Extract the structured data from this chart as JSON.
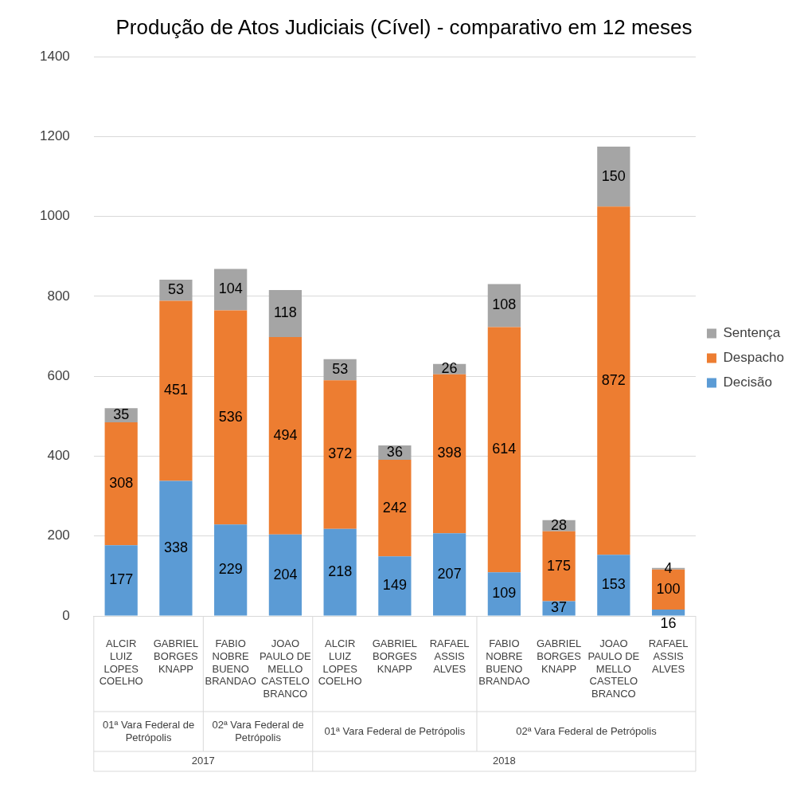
{
  "chart_data": {
    "type": "bar",
    "title": "Produção de Atos Judiciais (Cível) - comparativo em 12 meses",
    "categories": [
      "ALCIR LUIZ LOPES COELHO",
      "GABRIEL BORGES KNAPP",
      "FABIO NOBRE BUENO BRANDAO",
      "JOAO PAULO DE MELLO CASTELO BRANCO",
      "ALCIR LUIZ LOPES COELHO",
      "GABRIEL BORGES KNAPP",
      "RAFAEL ASSIS ALVES",
      "FABIO NOBRE BUENO BRANDAO",
      "GABRIEL BORGES KNAPP",
      "JOAO PAULO DE MELLO CASTELO BRANCO",
      "RAFAEL ASSIS ALVES"
    ],
    "series": [
      {
        "name": "Decisão",
        "color": "#5b9bd5",
        "values": [
          177,
          338,
          229,
          204,
          218,
          149,
          207,
          109,
          37,
          153,
          16
        ]
      },
      {
        "name": "Despacho",
        "color": "#ed7d31",
        "values": [
          308,
          451,
          536,
          494,
          372,
          242,
          398,
          614,
          175,
          872,
          100
        ]
      },
      {
        "name": "Sentença",
        "color": "#a5a5a5",
        "values": [
          35,
          53,
          104,
          118,
          53,
          36,
          26,
          108,
          28,
          150,
          4
        ]
      }
    ],
    "stacked": true,
    "ylim": [
      0,
      1400
    ],
    "yticks": [
      0,
      200,
      400,
      600,
      800,
      1000,
      1200,
      1400
    ],
    "grid": "y",
    "legend": "right",
    "data_labels": true,
    "annotations": [
      "01ª Vara Federal de Petrópolis",
      "02ª Vara Federal de Petrópolis",
      "01ª Vara Federal de Petrópolis",
      "02ª Vara Federal de Petrópolis",
      "2017",
      "2018"
    ]
  }
}
